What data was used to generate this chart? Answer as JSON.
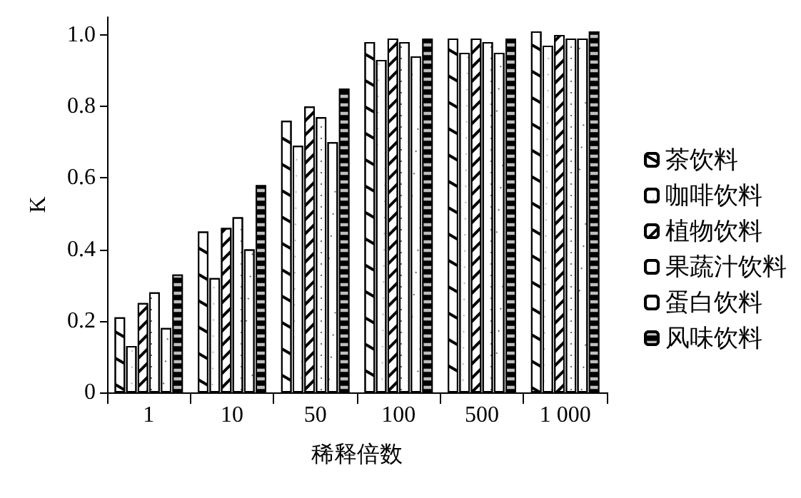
{
  "chart_data": {
    "type": "bar",
    "xlabel": "稀释倍数",
    "ylabel": "K",
    "categories": [
      "1",
      "10",
      "50",
      "100",
      "500",
      "1 000"
    ],
    "series": [
      {
        "name": "茶饮料",
        "color": "#ffffff",
        "values": [
          0.21,
          0.45,
          0.76,
          0.98,
          0.99,
          1.01
        ]
      },
      {
        "name": "咖啡饮料",
        "color": "#ffffff",
        "values": [
          0.13,
          0.32,
          0.69,
          0.93,
          0.95,
          0.97
        ]
      },
      {
        "name": "植物饮料",
        "color": "#ffffff",
        "values": [
          0.25,
          0.46,
          0.8,
          0.99,
          0.99,
          1.0
        ]
      },
      {
        "name": "果蔬汁饮料",
        "color": "#ffffff",
        "values": [
          0.28,
          0.49,
          0.77,
          0.98,
          0.98,
          0.99
        ]
      },
      {
        "name": "蛋白饮料",
        "color": "#ffffff",
        "values": [
          0.18,
          0.4,
          0.7,
          0.94,
          0.95,
          0.99
        ]
      },
      {
        "name": "风味饮料",
        "color": "#000000",
        "values": [
          0.33,
          0.58,
          0.85,
          0.99,
          0.99,
          1.01
        ]
      }
    ],
    "ylim": [
      0,
      1.05
    ],
    "yticks": [
      0,
      0.2,
      0.4,
      0.6,
      0.8,
      {
        "value": 1,
        "label": "1.0"
      }
    ],
    "grid": false,
    "legend": "right"
  }
}
